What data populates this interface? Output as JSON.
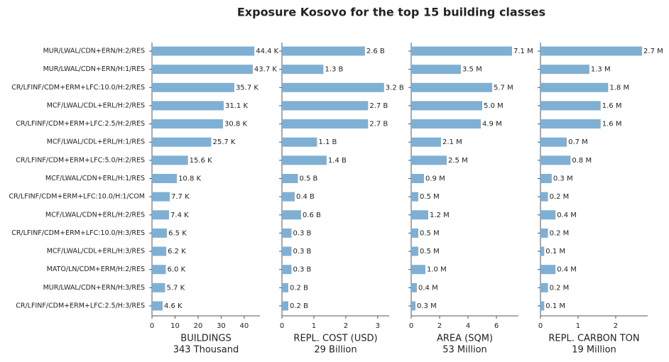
{
  "title": "Exposure Kosovo for the top 15 building classes",
  "chart_data": [
    {
      "type": "barh",
      "color": "#7fb0d4",
      "categories": [
        "MUR/LWAL/CDN+ERN/H:2/RES",
        "MUR/LWAL/CDN+ERN/H:1/RES",
        "CR/LFINF/CDM+ERM+LFC:10.0/H:2/RES",
        "MCF/LWAL/CDL+ERL/H:2/RES",
        "CR/LFINF/CDM+ERM+LFC:2.5/H:2/RES",
        "MCF/LWAL/CDL+ERL/H:1/RES",
        "CR/LFINF/CDM+ERM+LFC:5.0/H:2/RES",
        "MCF/LWAL/CDN+ERL/H:1/RES",
        "CR/LFINF/CDM+ERM+LFC:10.0/H:1/COM",
        "MCF/LWAL/CDN+ERL/H:2/RES",
        "CR/LFINF/CDM+ERM+LFC:10.0/H:3/RES",
        "MCF/LWAL/CDL+ERL/H:3/RES",
        "MATO/LN/CDM+ERM/H:2/RES",
        "MUR/LWAL/CDN+ERN/H:3/RES",
        "CR/LFINF/CDM+ERM+LFC:2.5/H:3/RES"
      ],
      "values": [
        44.4,
        43.7,
        35.7,
        31.1,
        30.8,
        25.7,
        15.6,
        10.8,
        7.7,
        7.4,
        6.5,
        6.2,
        6.0,
        5.7,
        4.6
      ],
      "value_labels": [
        "44.4 K",
        "43.7 K",
        "35.7 K",
        "31.1 K",
        "30.8 K",
        "25.7 K",
        "15.6 K",
        "10.8 K",
        "7.7 K",
        "7.4 K",
        "6.5 K",
        "6.2 K",
        "6.0 K",
        "5.7 K",
        "4.6 K"
      ],
      "xlim": [
        0,
        46.8
      ],
      "xticks": [
        0,
        10,
        20,
        30,
        40
      ],
      "xlabel": "BUILDINGS",
      "xlabel_total": "343 Thousand"
    },
    {
      "type": "barh",
      "color": "#7fb0d4",
      "values": [
        2.6,
        1.3,
        3.2,
        2.7,
        2.7,
        1.1,
        1.4,
        0.5,
        0.4,
        0.6,
        0.3,
        0.3,
        0.3,
        0.2,
        0.2
      ],
      "value_labels": [
        "2.6 B",
        "1.3 B",
        "3.2 B",
        "2.7 B",
        "2.7 B",
        "1.1 B",
        "1.4 B",
        "0.5 B",
        "0.4 B",
        "0.6 B",
        "0.3 B",
        "0.3 B",
        "0.3 B",
        "0.2 B",
        "0.2 B"
      ],
      "xlim": [
        0,
        3.36
      ],
      "xticks": [
        0,
        1,
        2,
        3
      ],
      "xlabel": "REPL. COST (USD)",
      "xlabel_total": "29 Billion"
    },
    {
      "type": "barh",
      "color": "#7fb0d4",
      "values": [
        7.1,
        3.5,
        5.7,
        5.0,
        4.9,
        2.1,
        2.5,
        0.9,
        0.5,
        1.2,
        0.5,
        0.5,
        1.0,
        0.4,
        0.3
      ],
      "value_labels": [
        "7.1 M",
        "3.5 M",
        "5.7 M",
        "5.0 M",
        "4.9 M",
        "2.1 M",
        "2.5 M",
        "0.9 M",
        "0.5 M",
        "1.2 M",
        "0.5 M",
        "0.5 M",
        "1.0 M",
        "0.4 M",
        "0.3 M"
      ],
      "xlim": [
        0,
        7.55
      ],
      "xticks": [
        0,
        2,
        4,
        6
      ],
      "xlabel": "AREA (SQM)",
      "xlabel_total": "53 Million"
    },
    {
      "type": "barh",
      "color": "#7fb0d4",
      "values": [
        2.7,
        1.3,
        1.8,
        1.6,
        1.6,
        0.7,
        0.8,
        0.3,
        0.2,
        0.4,
        0.2,
        0.1,
        0.4,
        0.2,
        0.1
      ],
      "value_labels": [
        "2.7 M",
        "1.3 M",
        "1.8 M",
        "1.6 M",
        "1.6 M",
        "0.7 M",
        "0.8 M",
        "0.3 M",
        "0.2 M",
        "0.4 M",
        "0.2 M",
        "0.1 M",
        "0.4 M",
        "0.2 M",
        "0.1 M"
      ],
      "xlim": [
        0,
        2.85
      ],
      "xticks": [
        0,
        1,
        2
      ],
      "xlabel": "REPL. CARBON TON",
      "xlabel_total": "19 Million"
    }
  ]
}
